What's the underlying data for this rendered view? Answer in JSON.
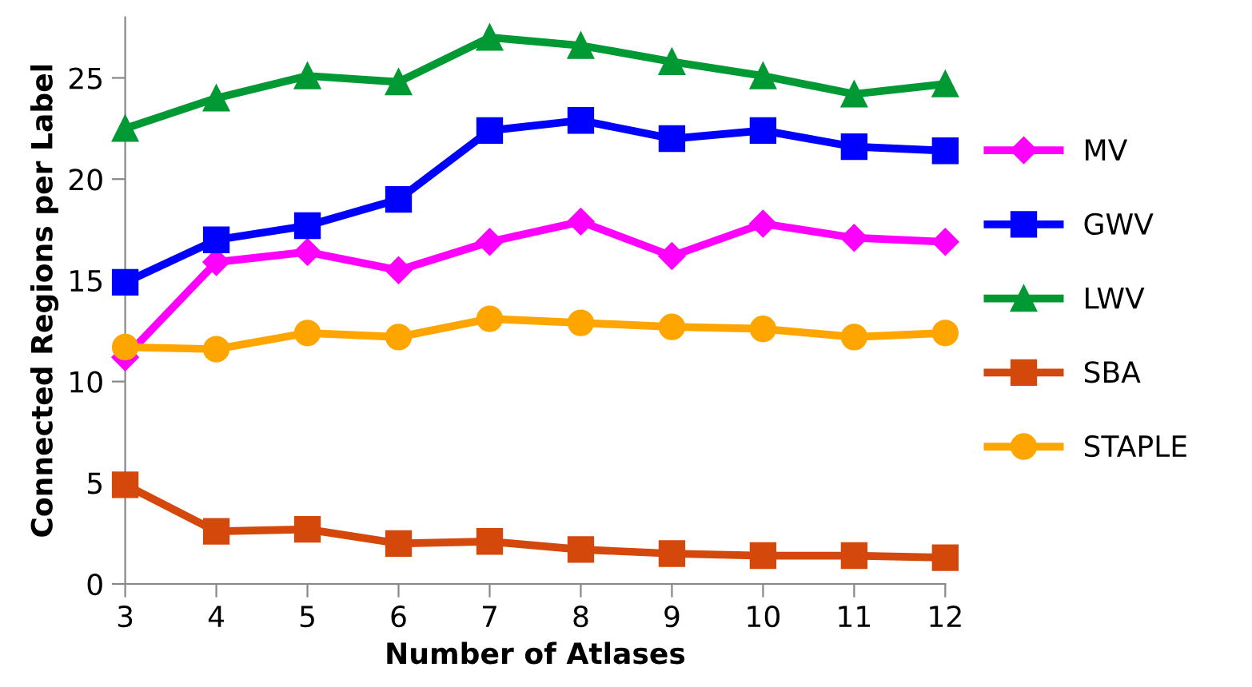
{
  "chart_data": {
    "type": "line",
    "xlabel": "Number of Atlases",
    "ylabel": "Connected Regions per Label",
    "x": [
      3,
      4,
      5,
      6,
      7,
      8,
      9,
      10,
      11,
      12
    ],
    "xlim": [
      3,
      12
    ],
    "xticks": [
      3,
      4,
      5,
      6,
      7,
      8,
      9,
      10,
      11,
      12
    ],
    "ylim": [
      0,
      28
    ],
    "yticks": [
      0,
      5,
      10,
      15,
      20,
      25
    ],
    "grid": false,
    "legend": "right",
    "line_style": "solid",
    "series": [
      {
        "name": "MV",
        "color": "#ff00ff",
        "marker": "diamond",
        "values": [
          11.2,
          15.9,
          16.4,
          15.5,
          16.9,
          17.9,
          16.2,
          17.8,
          17.1,
          16.9
        ]
      },
      {
        "name": "GWV",
        "color": "#0000ff",
        "marker": "square",
        "values": [
          14.9,
          17.0,
          17.7,
          19.0,
          22.4,
          22.9,
          22.0,
          22.4,
          21.6,
          21.4
        ]
      },
      {
        "name": "LWV",
        "color": "#009933",
        "marker": "triangle",
        "values": [
          22.5,
          24.0,
          25.1,
          24.8,
          27.0,
          26.6,
          25.8,
          25.1,
          24.2,
          24.7
        ]
      },
      {
        "name": "SBA",
        "color": "#d4480c",
        "marker": "square",
        "values": [
          4.9,
          2.6,
          2.7,
          2.0,
          2.1,
          1.7,
          1.5,
          1.4,
          1.4,
          1.3
        ]
      },
      {
        "name": "STAPLE",
        "color": "#ffa500",
        "marker": "circle",
        "values": [
          11.7,
          11.6,
          12.4,
          12.2,
          13.1,
          12.9,
          12.7,
          12.6,
          12.2,
          12.4
        ]
      }
    ]
  }
}
